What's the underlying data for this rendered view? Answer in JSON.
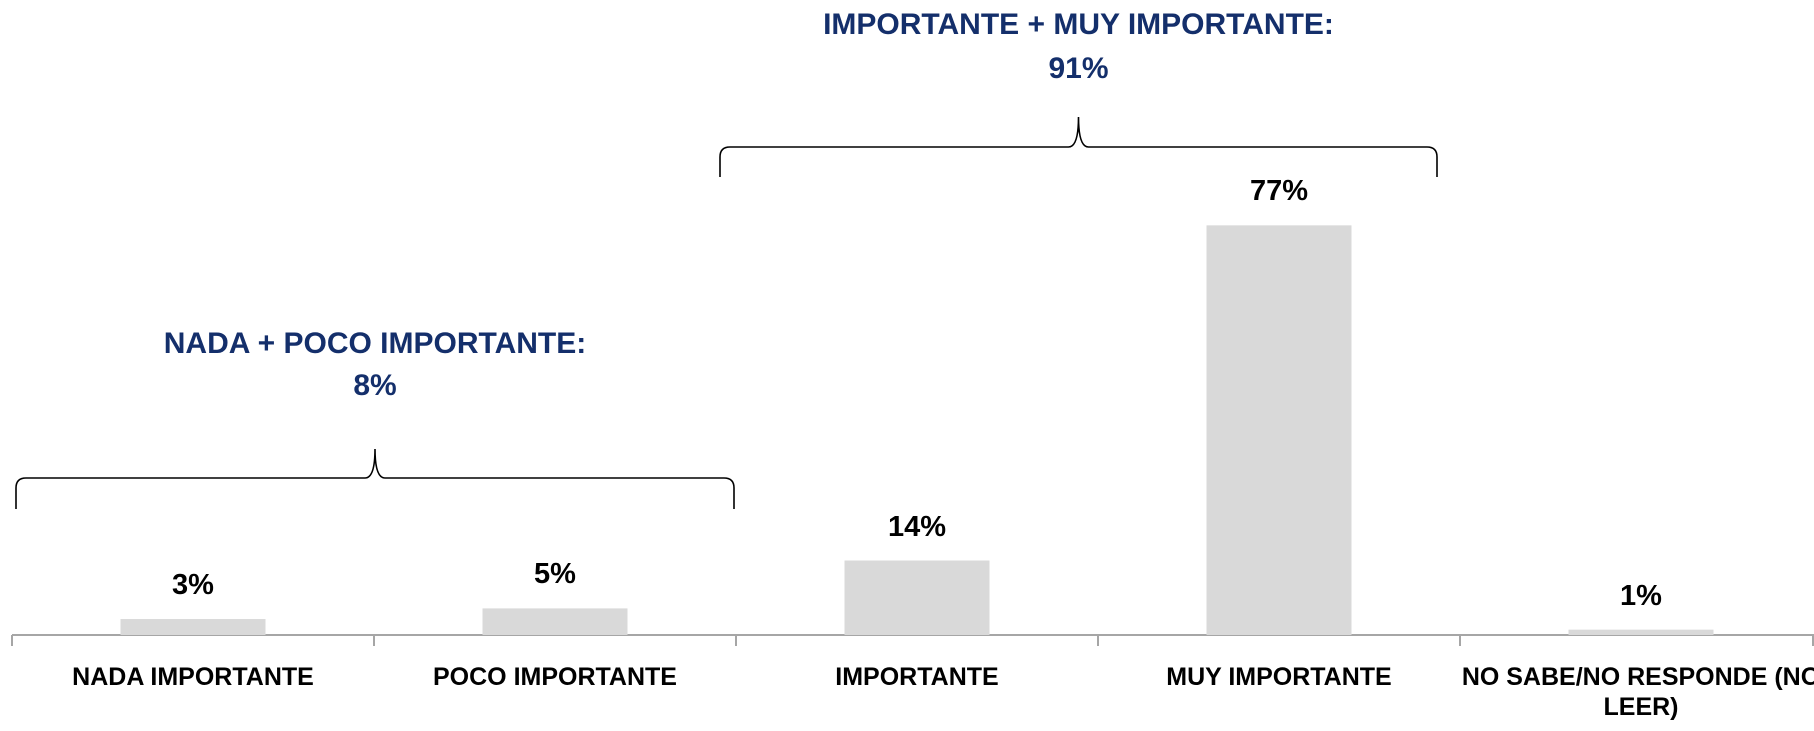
{
  "chart_data": {
    "type": "bar",
    "categories": [
      "NADA IMPORTANTE",
      "POCO IMPORTANTE",
      "IMPORTANTE",
      "MUY IMPORTANTE",
      "NO SABE/NO RESPONDE (NO LEER)"
    ],
    "values": [
      3,
      5,
      14,
      77,
      1
    ],
    "value_labels": [
      "3%",
      "5%",
      "14%",
      "77%",
      "1%"
    ],
    "color": "#d9d9d9",
    "annotations": [
      {
        "text": "NADA + POCO IMPORTANTE:",
        "total": "8%"
      },
      {
        "text": "IMPORTANTE + MUY IMPORTANTE:",
        "total": "91%"
      }
    ]
  }
}
